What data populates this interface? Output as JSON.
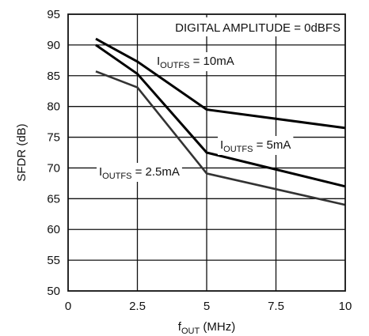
{
  "chart_data": {
    "type": "line",
    "xlabel": {
      "main": "f",
      "sub": "OUT",
      "rest": " (MHz)"
    },
    "ylabel": "SFDR (dB)",
    "xlim": [
      0,
      10
    ],
    "ylim": [
      50,
      95
    ],
    "xticks": [
      0,
      2.5,
      5,
      7.5,
      10
    ],
    "xtick_labels": [
      "0",
      "2.5",
      "5",
      "7.5",
      "10"
    ],
    "yticks": [
      50,
      55,
      60,
      65,
      70,
      75,
      80,
      85,
      90,
      95
    ],
    "ytick_labels": [
      "50",
      "55",
      "60",
      "65",
      "70",
      "75",
      "80",
      "85",
      "90",
      "95"
    ],
    "grid": true,
    "annotation": "DIGITAL AMPLITUDE = 0dBFS",
    "series": [
      {
        "name": "10mA",
        "label": {
          "main": "I",
          "sub": "OUTFS",
          "rest": " = 10mA"
        },
        "color": "#000000",
        "x": [
          1,
          2.5,
          5,
          10
        ],
        "y": [
          91,
          87.3,
          79.5,
          76.5
        ]
      },
      {
        "name": "5mA",
        "label": {
          "main": "I",
          "sub": "OUTFS",
          "rest": " = 5mA"
        },
        "color": "#000000",
        "x": [
          1,
          2.5,
          5,
          10
        ],
        "y": [
          90,
          85.3,
          72.5,
          67
        ]
      },
      {
        "name": "2.5mA",
        "label": {
          "main": "I",
          "sub": "OUTFS",
          "rest": " = 2.5mA"
        },
        "color": "#333333",
        "x": [
          1,
          2.5,
          5,
          10
        ],
        "y": [
          85.7,
          83.1,
          69.1,
          64
        ]
      }
    ]
  }
}
